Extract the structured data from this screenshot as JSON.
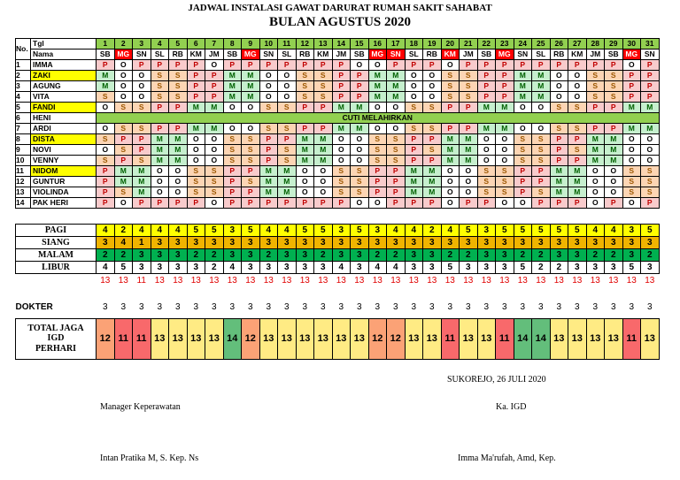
{
  "header": {
    "title": "JADWAL INSTALASI GAWAT DARURAT RUMAH SAKIT SAHABAT",
    "subtitle": "BULAN AGUSTUS 2020"
  },
  "table": {
    "no_label": "No.",
    "date_label": "Tgl",
    "name_label": "Nama",
    "days": [
      {
        "date": 1,
        "day": "SB"
      },
      {
        "date": 2,
        "day": "MG",
        "holiday": true
      },
      {
        "date": 3,
        "day": "SN"
      },
      {
        "date": 4,
        "day": "SL"
      },
      {
        "date": 5,
        "day": "RB"
      },
      {
        "date": 6,
        "day": "KM"
      },
      {
        "date": 7,
        "day": "JM"
      },
      {
        "date": 8,
        "day": "SB"
      },
      {
        "date": 9,
        "day": "MG",
        "holiday": true
      },
      {
        "date": 10,
        "day": "SN"
      },
      {
        "date": 11,
        "day": "SL"
      },
      {
        "date": 12,
        "day": "RB"
      },
      {
        "date": 13,
        "day": "KM"
      },
      {
        "date": 14,
        "day": "JM"
      },
      {
        "date": 15,
        "day": "SB"
      },
      {
        "date": 16,
        "day": "MG",
        "holiday": true
      },
      {
        "date": 17,
        "day": "SN",
        "holiday": true
      },
      {
        "date": 18,
        "day": "SL"
      },
      {
        "date": 19,
        "day": "RB"
      },
      {
        "date": 20,
        "day": "KM",
        "holiday": true
      },
      {
        "date": 21,
        "day": "JM"
      },
      {
        "date": 22,
        "day": "SB"
      },
      {
        "date": 23,
        "day": "MG",
        "holiday": true
      },
      {
        "date": 24,
        "day": "SN"
      },
      {
        "date": 25,
        "day": "SL"
      },
      {
        "date": 26,
        "day": "RB"
      },
      {
        "date": 27,
        "day": "KM"
      },
      {
        "date": 28,
        "day": "JM"
      },
      {
        "date": 29,
        "day": "SB"
      },
      {
        "date": 30,
        "day": "MG",
        "holiday": true
      },
      {
        "date": 31,
        "day": "SN"
      }
    ],
    "rows": [
      {
        "no": 1,
        "name": "IMMA",
        "shifts": [
          "P",
          "O",
          "P",
          "P",
          "P",
          "P",
          "O",
          "P",
          "P",
          "P",
          "P",
          "P",
          "P",
          "P",
          "O",
          "O",
          "P",
          "P",
          "P",
          "O",
          "P",
          "P",
          "P",
          "P",
          "P",
          "P",
          "P",
          "P",
          "P",
          "O",
          "P"
        ]
      },
      {
        "no": 2,
        "name": "ZAKI",
        "highlight": true,
        "shifts": [
          "M",
          "O",
          "O",
          "S",
          "S",
          "P",
          "P",
          "M",
          "M",
          "O",
          "O",
          "S",
          "S",
          "P",
          "P",
          "M",
          "M",
          "O",
          "O",
          "S",
          "S",
          "P",
          "P",
          "M",
          "M",
          "O",
          "O",
          "S",
          "S",
          "P",
          "P"
        ]
      },
      {
        "no": 3,
        "name": "AGUNG",
        "shifts": [
          "M",
          "O",
          "O",
          "S",
          "S",
          "P",
          "P",
          "M",
          "M",
          "O",
          "O",
          "S",
          "S",
          "P",
          "P",
          "M",
          "M",
          "O",
          "O",
          "S",
          "S",
          "P",
          "P",
          "M",
          "M",
          "O",
          "O",
          "S",
          "S",
          "P",
          "P"
        ]
      },
      {
        "no": 4,
        "name": "VITA",
        "shifts": [
          "S",
          "O",
          "O",
          "S",
          "S",
          "P",
          "P",
          "M",
          "M",
          "O",
          "O",
          "S",
          "S",
          "P",
          "P",
          "M",
          "M",
          "O",
          "O",
          "S",
          "S",
          "P",
          "P",
          "M",
          "M",
          "O",
          "O",
          "S",
          "S",
          "P",
          "P"
        ]
      },
      {
        "no": 5,
        "name": "FANDI",
        "highlight": true,
        "shifts": [
          "O",
          "S",
          "S",
          "P",
          "P",
          "M",
          "M",
          "O",
          "O",
          "S",
          "S",
          "P",
          "P",
          "M",
          "M",
          "O",
          "O",
          "S",
          "S",
          "P",
          "P",
          "M",
          "M",
          "O",
          "O",
          "S",
          "S",
          "P",
          "P",
          "M",
          "M"
        ]
      },
      {
        "no": 6,
        "name": "HENI",
        "note": "CUTI MELAHIRKAN"
      },
      {
        "no": 7,
        "name": "ARDI",
        "shifts": [
          "O",
          "S",
          "S",
          "P",
          "P",
          "M",
          "M",
          "O",
          "O",
          "S",
          "S",
          "P",
          "P",
          "M",
          "M",
          "O",
          "O",
          "S",
          "S",
          "P",
          "P",
          "M",
          "M",
          "O",
          "O",
          "S",
          "S",
          "P",
          "P",
          "M",
          "M"
        ]
      },
      {
        "no": 8,
        "name": "DISTA",
        "highlight": true,
        "shifts": [
          "S",
          "P",
          "P",
          "M",
          "M",
          "O",
          "O",
          "S",
          "S",
          "P",
          "P",
          "M",
          "M",
          "O",
          "O",
          "S",
          "S",
          "P",
          "P",
          "M",
          "M",
          "O",
          "O",
          "S",
          "S",
          "P",
          "P",
          "M",
          "M",
          "O",
          "O"
        ]
      },
      {
        "no": 9,
        "name": "NOVI",
        "shifts": [
          "O",
          "S",
          "P",
          "M",
          "M",
          "O",
          "O",
          "S",
          "S",
          "P",
          "S",
          "M",
          "M",
          "O",
          "O",
          "S",
          "S",
          "P",
          "S",
          "M",
          "M",
          "O",
          "O",
          "S",
          "S",
          "P",
          "S",
          "M",
          "M",
          "O",
          "O"
        ]
      },
      {
        "no": 10,
        "name": "VENNY",
        "shifts": [
          "S",
          "P",
          "S",
          "M",
          "M",
          "O",
          "O",
          "S",
          "S",
          "P",
          "S",
          "M",
          "M",
          "O",
          "O",
          "S",
          "S",
          "P",
          "P",
          "M",
          "M",
          "O",
          "O",
          "S",
          "S",
          "P",
          "P",
          "M",
          "M",
          "O",
          "O"
        ]
      },
      {
        "no": 11,
        "name": "NIDOM",
        "highlight": true,
        "shifts": [
          "P",
          "M",
          "M",
          "O",
          "O",
          "S",
          "S",
          "P",
          "P",
          "M",
          "M",
          "O",
          "O",
          "S",
          "S",
          "P",
          "P",
          "M",
          "M",
          "O",
          "O",
          "S",
          "S",
          "P",
          "P",
          "M",
          "M",
          "O",
          "O",
          "S",
          "S"
        ]
      },
      {
        "no": 12,
        "name": "GUNTUR",
        "shifts": [
          "P",
          "M",
          "M",
          "O",
          "O",
          "S",
          "S",
          "P",
          "S",
          "M",
          "M",
          "O",
          "O",
          "S",
          "S",
          "P",
          "P",
          "M",
          "M",
          "O",
          "O",
          "S",
          "S",
          "P",
          "P",
          "M",
          "M",
          "O",
          "O",
          "S",
          "S"
        ]
      },
      {
        "no": 13,
        "name": "VIOLINDA",
        "shifts": [
          "P",
          "S",
          "M",
          "O",
          "O",
          "S",
          "S",
          "P",
          "P",
          "M",
          "M",
          "O",
          "O",
          "S",
          "S",
          "P",
          "P",
          "M",
          "M",
          "O",
          "O",
          "S",
          "S",
          "P",
          "S",
          "M",
          "M",
          "O",
          "O",
          "S",
          "S"
        ]
      },
      {
        "no": 14,
        "name": "PAK HERI",
        "shifts": [
          "P",
          "O",
          "P",
          "P",
          "P",
          "P",
          "O",
          "P",
          "P",
          "P",
          "P",
          "P",
          "P",
          "P",
          "O",
          "O",
          "P",
          "P",
          "P",
          "O",
          "P",
          "P",
          "O",
          "O",
          "P",
          "P",
          "P",
          "O",
          "P",
          "O",
          "P"
        ]
      }
    ]
  },
  "summary": {
    "rows": [
      {
        "label": "PAGI",
        "values": [
          4,
          2,
          4,
          4,
          4,
          5,
          5,
          3,
          5,
          4,
          4,
          5,
          5,
          3,
          5,
          3,
          4,
          4,
          2,
          4,
          5,
          3,
          5,
          5,
          5,
          5,
          5,
          4,
          4,
          3,
          5
        ]
      },
      {
        "label": "SIANG",
        "values": [
          3,
          4,
          1,
          3,
          3,
          3,
          3,
          3,
          3,
          3,
          3,
          3,
          3,
          3,
          3,
          3,
          3,
          3,
          3,
          3,
          3,
          3,
          3,
          3,
          3,
          3,
          3,
          3,
          3,
          3,
          3
        ]
      },
      {
        "label": "MALAM",
        "values": [
          2,
          2,
          3,
          3,
          3,
          2,
          2,
          3,
          3,
          2,
          3,
          3,
          2,
          3,
          3,
          2,
          2,
          3,
          3,
          2,
          2,
          3,
          3,
          2,
          2,
          3,
          3,
          2,
          2,
          3,
          2
        ]
      },
      {
        "label": "LIBUR",
        "values": [
          4,
          5,
          3,
          3,
          3,
          3,
          2,
          4,
          3,
          3,
          3,
          3,
          3,
          4,
          3,
          4,
          4,
          3,
          3,
          5,
          3,
          3,
          3,
          5,
          2,
          2,
          3,
          3,
          3,
          5,
          3
        ]
      }
    ],
    "totals": [
      13,
      13,
      11,
      13,
      13,
      13,
      13,
      13,
      13,
      13,
      13,
      13,
      13,
      13,
      13,
      13,
      13,
      13,
      13,
      13,
      13,
      13,
      13,
      13,
      13,
      13,
      13,
      13,
      13,
      13,
      13
    ]
  },
  "dokter": {
    "label": "DOKTER",
    "values": [
      3,
      3,
      3,
      3,
      3,
      3,
      3,
      3,
      3,
      3,
      3,
      3,
      3,
      3,
      3,
      3,
      3,
      3,
      3,
      3,
      3,
      3,
      3,
      3,
      3,
      3,
      3,
      3,
      3,
      3,
      3
    ]
  },
  "total_jaga": {
    "label": "TOTAL JAGA IGD PERHARI",
    "values": [
      12,
      11,
      11,
      13,
      13,
      13,
      13,
      14,
      12,
      13,
      13,
      13,
      13,
      13,
      13,
      12,
      12,
      13,
      13,
      11,
      13,
      13,
      11,
      14,
      14,
      13,
      13,
      13,
      13,
      11,
      13
    ]
  },
  "footer": {
    "place_date": "SUKOREJO, 26 JULI 2020",
    "left_role": "Manager Keperawatan",
    "right_role": "Ka. IGD",
    "left_name": "Intan Pratika M, S. Kep. Ns",
    "right_name": "Imma Ma'rufah, Amd, Kep."
  }
}
